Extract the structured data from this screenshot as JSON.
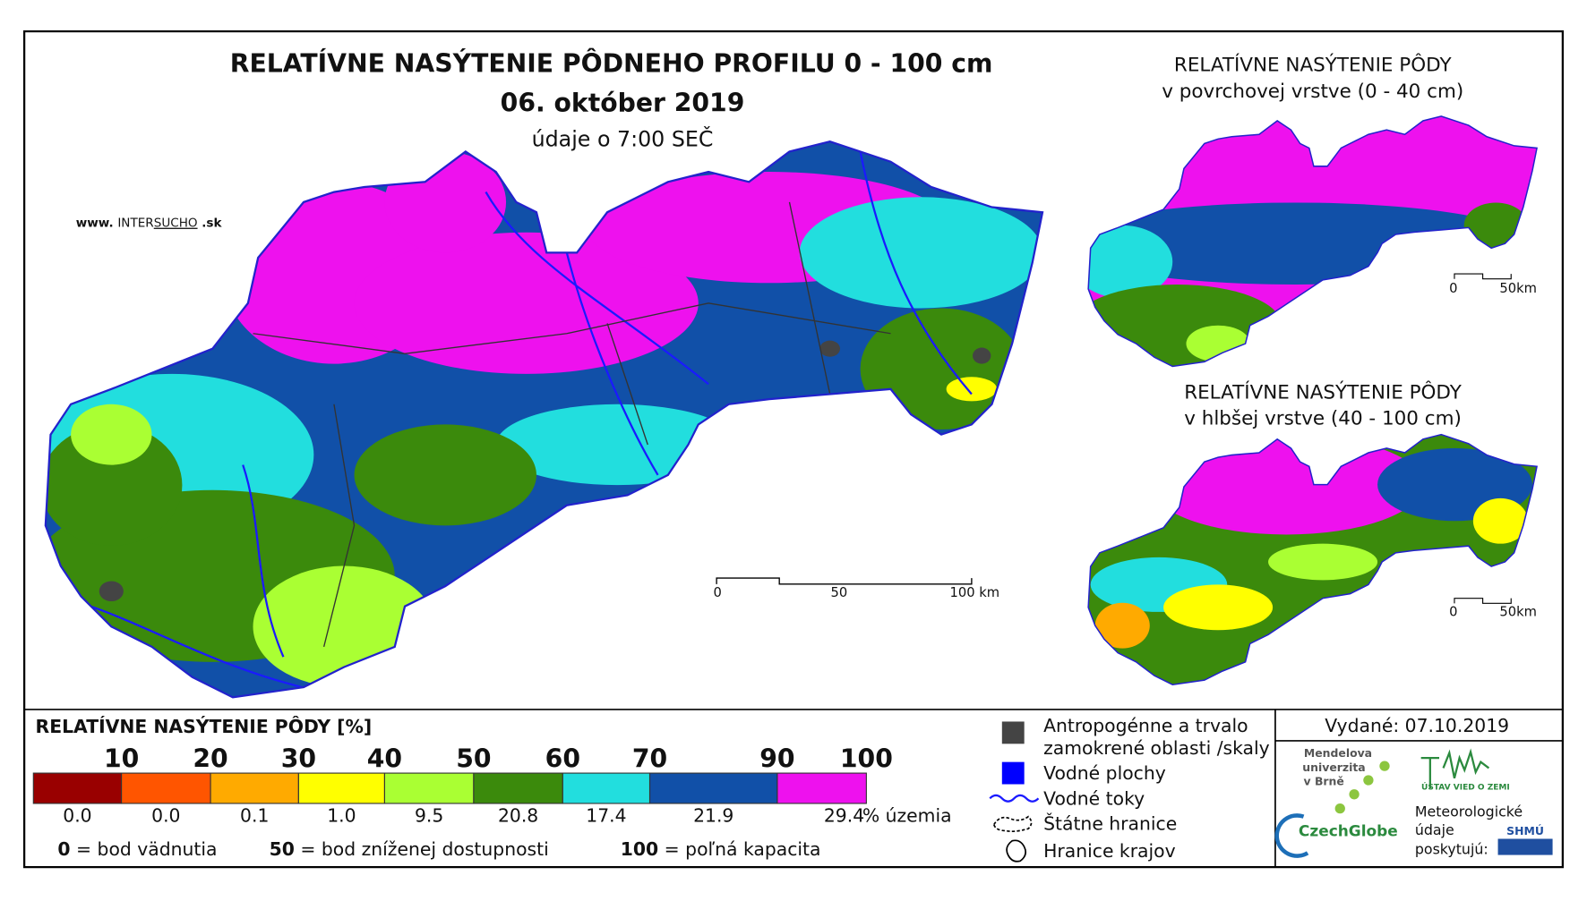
{
  "header": {
    "title": "RELATÍVNE NASÝTENIE PÔDNEHO PROFILU 0 - 100 cm",
    "date": "06. október 2019",
    "time_note": "údaje o 7:00 SEČ"
  },
  "website": {
    "prefix": "www.",
    "brand_a": "INTER",
    "brand_b": "SUCHO",
    "suffix": ".sk"
  },
  "main_scale": {
    "labels": [
      "0",
      "50",
      "100 km"
    ]
  },
  "insets": [
    {
      "title_lines": [
        "RELATÍVNE NASÝTENIE PÔDY",
        "v povrchovej vrstve (0 - 40 cm)"
      ],
      "scale_labels": [
        "0",
        "50km"
      ]
    },
    {
      "title_lines": [
        "RELATÍVNE NASÝTENIE PÔDY",
        "v hlbšej vrstve (40 - 100 cm)"
      ],
      "scale_labels": [
        "0",
        "50km"
      ]
    }
  ],
  "legend": {
    "title": "RELATÍVNE NASÝTENIE PÔDY [%]",
    "classes": [
      {
        "upper": "10",
        "color": "#990000",
        "share": "0.0"
      },
      {
        "upper": "20",
        "color": "#ff5500",
        "share": "0.0"
      },
      {
        "upper": "30",
        "color": "#ffaa00",
        "share": "0.1"
      },
      {
        "upper": "40",
        "color": "#ffff00",
        "share": "1.0"
      },
      {
        "upper": "50",
        "color": "#aaff33",
        "share": "9.5"
      },
      {
        "upper": "60",
        "color": "#3b8a0c",
        "share": "20.8"
      },
      {
        "upper": "70",
        "color": "#22dede",
        "share": "17.4"
      },
      {
        "upper": "90",
        "color": "#1150a8",
        "share": "21.9"
      },
      {
        "upper": "100",
        "color": "#ee11ee",
        "share": "29.4"
      }
    ],
    "unit": "% územia",
    "notes": [
      {
        "value": "0",
        "text": "= bod vädnutia"
      },
      {
        "value": "50",
        "text": "= bod zníženej dostupnosti"
      },
      {
        "value": "100",
        "text": "= poľná kapacita"
      }
    ]
  },
  "symbols": {
    "anthropogenic": [
      "Antropogénne a trvalo",
      "zamokrené oblasti /skaly"
    ],
    "water_bodies": "Vodné plochy",
    "rivers": "Vodné toky",
    "state_border": "Štátne hranice",
    "region_border": "Hranice krajov"
  },
  "issued": "Vydané: 07.10.2019",
  "logos": {
    "mendel": [
      "Mendelova",
      "univerzita",
      "v Brně"
    ],
    "czechglobe": "CzechGlobe",
    "ustav": "ÚSTAV VIED O ZEMI",
    "providers": [
      "Meteorologické",
      "údaje",
      "poskytujú:"
    ],
    "shmu": "SHMÚ"
  }
}
